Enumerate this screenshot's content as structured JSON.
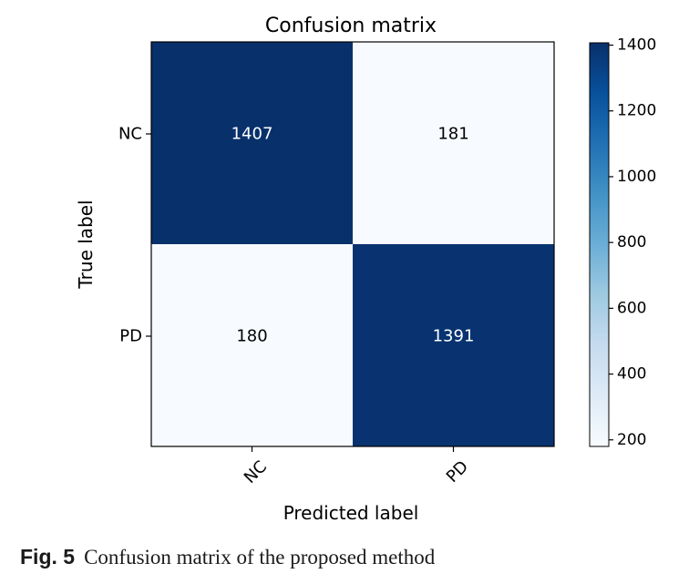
{
  "chart_data": {
    "type": "heatmap",
    "title": "Confusion matrix",
    "xlabel": "Predicted label",
    "ylabel": "True label",
    "x_categories": [
      "NC",
      "PD"
    ],
    "y_categories": [
      "NC",
      "PD"
    ],
    "values": [
      [
        1407,
        181
      ],
      [
        180,
        1391
      ]
    ],
    "colormap": "Blues",
    "colorbar": {
      "range": [
        180,
        1407
      ],
      "ticks": [
        200,
        400,
        600,
        800,
        1000,
        1200,
        1400
      ]
    },
    "colors": {
      "high": "#08306b",
      "low": "#f7fbff",
      "text_on_dark": "#ffffff",
      "text_on_light": "#000000"
    }
  },
  "caption": {
    "label": "Fig. 5",
    "text": "Confusion matrix of the proposed method"
  }
}
